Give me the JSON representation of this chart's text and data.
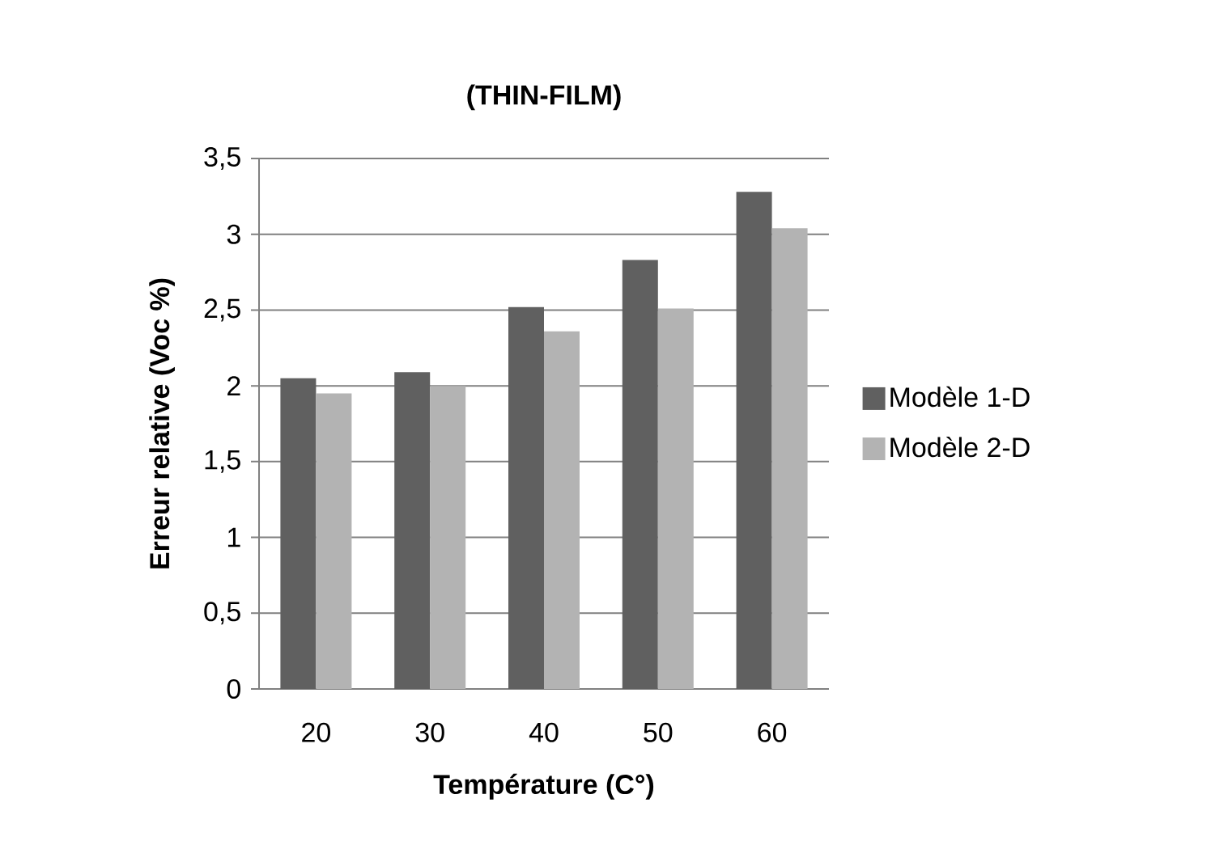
{
  "chart_data": {
    "type": "bar",
    "title": "(THIN-FILM)",
    "xlabel": "Température (C°)",
    "ylabel": "Erreur relative (Voc %)",
    "categories": [
      "20",
      "30",
      "40",
      "50",
      "60"
    ],
    "series": [
      {
        "name": "Modèle 1-D",
        "color": "#606060",
        "values": [
          2.05,
          2.09,
          2.52,
          2.83,
          3.28
        ]
      },
      {
        "name": "Modèle 2-D",
        "color": "#b3b3b3",
        "values": [
          1.95,
          2.0,
          2.36,
          2.51,
          3.04
        ]
      }
    ],
    "ylim": [
      0,
      3.5
    ],
    "yticks": [
      {
        "value": 0,
        "label": "0"
      },
      {
        "value": 0.5,
        "label": "0,5"
      },
      {
        "value": 1,
        "label": "1"
      },
      {
        "value": 1.5,
        "label": "1,5"
      },
      {
        "value": 2,
        "label": "2"
      },
      {
        "value": 2.5,
        "label": "2,5"
      },
      {
        "value": 3,
        "label": "3"
      },
      {
        "value": 3.5,
        "label": "3,5"
      }
    ],
    "grid": "y",
    "legend": "right"
  }
}
